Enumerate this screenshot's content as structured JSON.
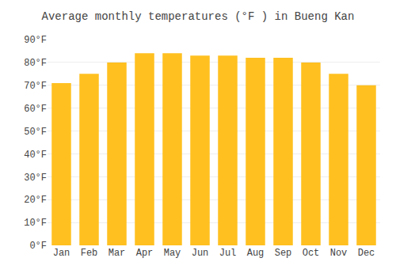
{
  "chart_data": {
    "type": "bar",
    "title": "Average monthly temperatures (°F ) in Bueng Kan",
    "categories": [
      "Jan",
      "Feb",
      "Mar",
      "Apr",
      "May",
      "Jun",
      "Jul",
      "Aug",
      "Sep",
      "Oct",
      "Nov",
      "Dec"
    ],
    "values": [
      71,
      75,
      80,
      84,
      84,
      83,
      83,
      82,
      82,
      80,
      75,
      70
    ],
    "color": "#FFC020",
    "ylim": [
      0,
      90
    ],
    "yticks": [
      {
        "value": 0,
        "label": "0°F"
      },
      {
        "value": 10,
        "label": "10°F"
      },
      {
        "value": 20,
        "label": "20°F"
      },
      {
        "value": 30,
        "label": "30°F"
      },
      {
        "value": 40,
        "label": "40°F"
      },
      {
        "value": 50,
        "label": "50°F"
      },
      {
        "value": 60,
        "label": "60°F"
      },
      {
        "value": 70,
        "label": "70°F"
      },
      {
        "value": 80,
        "label": "80°F"
      },
      {
        "value": 90,
        "label": "90°F"
      }
    ],
    "grid": true
  }
}
